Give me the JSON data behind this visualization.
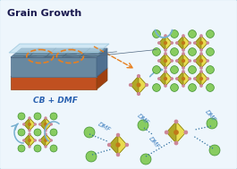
{
  "title": "Grain Growth",
  "cb_dmf_label": "CB + DMF",
  "bg_color": "#eef6fc",
  "border_color": "#7ab8d4",
  "oct_yellow": "#d4c838",
  "oct_yellow_light": "#e8dc50",
  "oct_yellow_dark": "#b0a828",
  "oct_edge": "#908818",
  "oct_center": "#c07818",
  "green_fill": "#88cc60",
  "green_edge": "#409030",
  "pink_dot": "#cc8899",
  "film_top_fill": "#7090a8",
  "film_top_edge": "#506880",
  "film_base_fill": "#c05820",
  "film_base_edge": "#904010",
  "film_cover_fill": "#c0e0f0",
  "film_cover_edge": "#90c0d8",
  "orange_dash": "#e88020",
  "arrow_blue": "#78b0d0",
  "dmf_text_color": "#4080c0"
}
